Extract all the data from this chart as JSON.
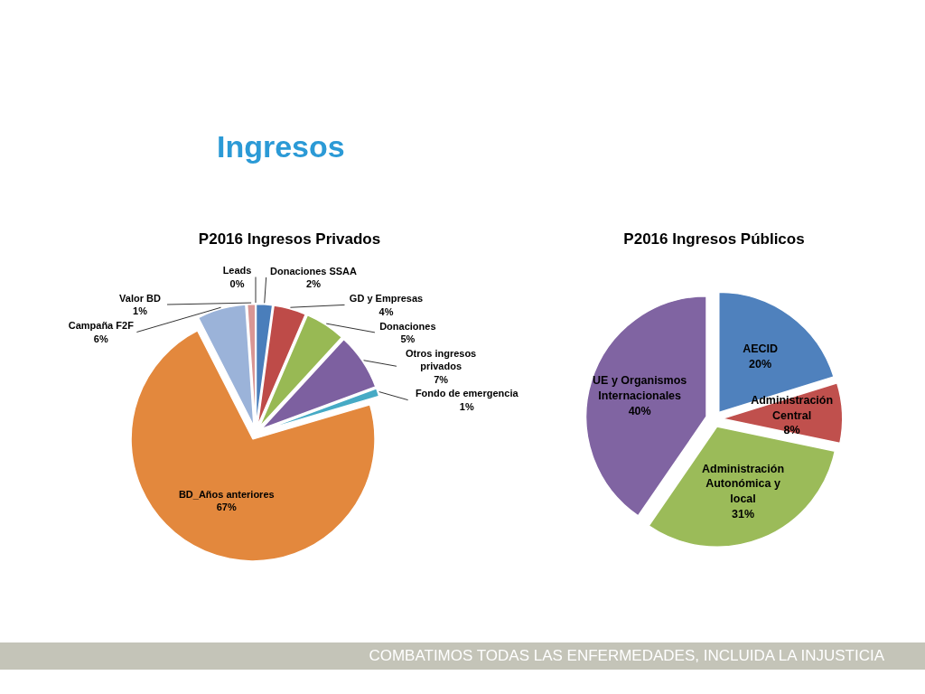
{
  "chart_data": [
    {
      "type": "pie",
      "title": "P2016 Ingresos Privados",
      "categories": [
        "Donaciones SSAA",
        "GD y Empresas",
        "Donaciones",
        "Otros ingresos privados",
        "Fondo de emergencia",
        "BD_Años anteriores",
        "Campaña F2F",
        "Valor BD",
        "Leads"
      ],
      "values": [
        2,
        4,
        5,
        7,
        1,
        67,
        6,
        1,
        0
      ],
      "value_labels": [
        "2%",
        "4%",
        "5%",
        "7%",
        "1%",
        "67%",
        "6%",
        "1%",
        "0%"
      ],
      "colors": [
        "#4a7ebb",
        "#be4b48",
        "#98b954",
        "#7d60a0",
        "#46aac5",
        "#e3883d",
        "#9bb3d9",
        "#d99694",
        "#c3d69b"
      ],
      "annotations": [
        "Ingresos",
        "COMBATIMOS TODAS LAS ENFERMEDADES, INCLUIDA LA INJUSTICIA"
      ]
    },
    {
      "type": "pie",
      "title": "P2016 Ingresos Públicos",
      "categories": [
        "AECID",
        "Administración Central",
        "Administración Autonómica y local",
        "UE y Organismos Internacionales"
      ],
      "values": [
        20,
        8,
        31,
        40
      ],
      "value_labels": [
        "20%",
        "8%",
        "31%",
        "40%"
      ],
      "colors": [
        "#4f81bd",
        "#c0504d",
        "#9bbb59",
        "#8064a2"
      ]
    }
  ]
}
